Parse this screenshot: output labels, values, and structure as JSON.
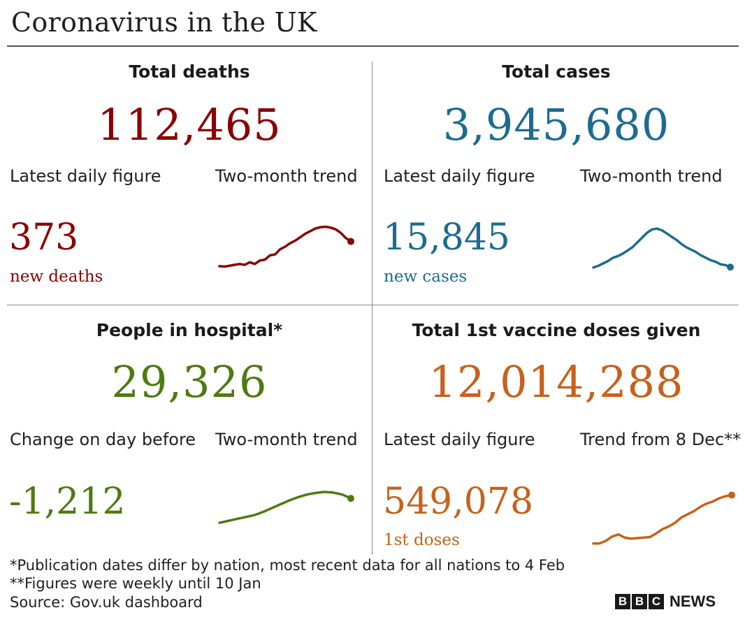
{
  "title": "Coronavirus in the UK",
  "colors": {
    "deaths": "#8b0000",
    "cases": "#1d6b91",
    "hospital": "#4d7a11",
    "vaccine": "#c8611a"
  },
  "panels": {
    "deaths": {
      "heading": "Total deaths",
      "total": "112,465",
      "left_label": "Latest daily figure",
      "right_label": "Two-month trend",
      "value": "373",
      "unit": "new deaths"
    },
    "cases": {
      "heading": "Total cases",
      "total": "3,945,680",
      "left_label": "Latest daily figure",
      "right_label": "Two-month trend",
      "value": "15,845",
      "unit": "new cases"
    },
    "hospital": {
      "heading": "People in hospital*",
      "total": "29,326",
      "left_label": "Change on day before",
      "right_label": "Two-month trend",
      "value": "-1,212",
      "unit": ""
    },
    "vaccine": {
      "heading": "Total 1st vaccine doses given",
      "total": "12,014,288",
      "left_label": "Latest daily figure",
      "right_label": "Trend from 8 Dec**",
      "value": "549,078",
      "unit": "1st doses"
    }
  },
  "footnotes": {
    "note1": "*Publication dates differ by nation, most recent data for all nations to 4 Feb",
    "note2": "**Figures were weekly until 10 Jan",
    "source": "Source: Gov.uk dashboard"
  },
  "logo": {
    "letters": [
      "B",
      "B",
      "C"
    ],
    "word": "NEWS"
  },
  "chart_data": [
    {
      "type": "line",
      "title": "Two-month trend",
      "series": [
        {
          "values": [
            0.05,
            0.04,
            0.06,
            0.08,
            0.1,
            0.08,
            0.14,
            0.1,
            0.18,
            0.2,
            0.3,
            0.32,
            0.44,
            0.5,
            0.58,
            0.64,
            0.72,
            0.8,
            0.86,
            0.92,
            0.95,
            0.96,
            0.94,
            0.9,
            0.82,
            0.7,
            0.62
          ]
        }
      ]
    },
    {
      "type": "line",
      "title": "Two-month trend",
      "series": [
        {
          "values": [
            0.02,
            0.06,
            0.12,
            0.18,
            0.26,
            0.3,
            0.36,
            0.44,
            0.52,
            0.64,
            0.76,
            0.88,
            0.96,
            0.98,
            0.94,
            0.86,
            0.78,
            0.7,
            0.6,
            0.52,
            0.46,
            0.4,
            0.32,
            0.26,
            0.2,
            0.16,
            0.1,
            0.08,
            0.03
          ]
        }
      ]
    },
    {
      "type": "line",
      "title": "Two-month trend",
      "series": [
        {
          "values": [
            0.04,
            0.1,
            0.16,
            0.22,
            0.28,
            0.38,
            0.5,
            0.62,
            0.74,
            0.84,
            0.92,
            0.97,
            1.0,
            0.98,
            0.92,
            0.8
          ]
        }
      ]
    },
    {
      "type": "line",
      "title": "Trend from 8 Dec**",
      "series": [
        {
          "values": [
            0.03,
            0.03,
            0.08,
            0.16,
            0.2,
            0.14,
            0.12,
            0.13,
            0.14,
            0.15,
            0.22,
            0.3,
            0.35,
            0.42,
            0.52,
            0.58,
            0.64,
            0.72,
            0.78,
            0.82,
            0.88,
            0.92,
            0.94
          ]
        }
      ]
    }
  ]
}
